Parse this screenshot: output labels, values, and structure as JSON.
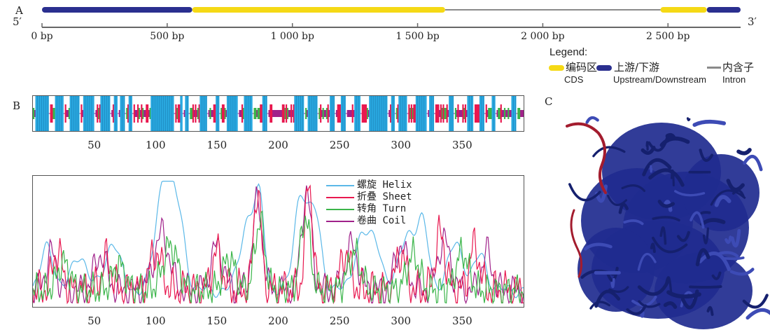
{
  "panelA": {
    "letter": "A",
    "five_prime": "5′",
    "three_prime": "3′",
    "ticks": [
      {
        "label": "0 bp",
        "bp": 0
      },
      {
        "label": "500 bp",
        "bp": 500
      },
      {
        "label": "1 000 bp",
        "bp": 1000
      },
      {
        "label": "1 500 bp",
        "bp": 1500
      },
      {
        "label": "2 000 bp",
        "bp": 2000
      },
      {
        "label": "2 500 bp",
        "bp": 2500
      }
    ],
    "segments": [
      {
        "type": "upstream",
        "start_bp": 0,
        "end_bp": 600
      },
      {
        "type": "cds",
        "start_bp": 600,
        "end_bp": 1610
      },
      {
        "type": "intron",
        "start_bp": 1610,
        "end_bp": 2470
      },
      {
        "type": "cds",
        "start_bp": 2470,
        "end_bp": 2655
      },
      {
        "type": "upstream",
        "start_bp": 2655,
        "end_bp": 2790
      }
    ],
    "colors": {
      "cds": "#f5d915",
      "upstream": "#2a2f8f",
      "intron": "#8a8a8a"
    },
    "legend": {
      "title": "Legend:",
      "cds_cn": "编码区",
      "cds_en": "CDS",
      "up_cn": "上游/下游",
      "up_en": "Upstream/Downstream",
      "intron_cn": "内含子",
      "intron_en": "Intron"
    }
  },
  "panelB": {
    "letter": "B",
    "ticks": [
      "50",
      "100",
      "150",
      "200",
      "250",
      "300",
      "350"
    ],
    "helix_blocks": [
      [
        2,
        12
      ],
      [
        18,
        24
      ],
      [
        30,
        37
      ],
      [
        41,
        49
      ],
      [
        55,
        62
      ],
      [
        66,
        68
      ],
      [
        71,
        74
      ],
      [
        78,
        80
      ],
      [
        96,
        114
      ],
      [
        120,
        121
      ],
      [
        124,
        126
      ],
      [
        136,
        141
      ],
      [
        149,
        151
      ],
      [
        158,
        166
      ],
      [
        172,
        178
      ],
      [
        187,
        190
      ],
      [
        213,
        220
      ],
      [
        224,
        231
      ],
      [
        242,
        245
      ],
      [
        251,
        254
      ],
      [
        262,
        266
      ],
      [
        274,
        288
      ],
      [
        292,
        294
      ],
      [
        298,
        304
      ],
      [
        312,
        320
      ],
      [
        323,
        326
      ],
      [
        339,
        342
      ],
      [
        354,
        358
      ],
      [
        364,
        367
      ],
      [
        374,
        376
      ],
      [
        390,
        393
      ]
    ],
    "colors": {
      "helix": "#29a8e0",
      "sheet": "#e8184f",
      "turn": "#3bb54a",
      "coil": "#a0228a"
    },
    "legend": [
      {
        "cn": "螺旋",
        "en": "Helix",
        "key": "helix"
      },
      {
        "cn": "折叠",
        "en": "Sheet",
        "key": "sheet"
      },
      {
        "cn": "转角",
        "en": "Turn",
        "key": "turn"
      },
      {
        "cn": "卷曲",
        "en": "Coil",
        "key": "coil"
      }
    ]
  },
  "panelC": {
    "letter": "C",
    "colors": {
      "main": "#1f2b8f",
      "loop": "#a31c2e"
    }
  }
}
